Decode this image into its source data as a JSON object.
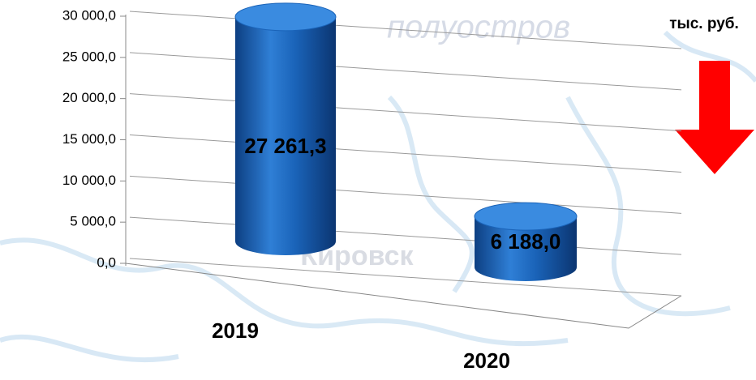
{
  "chart_data": {
    "type": "bar",
    "unit": "тыс. руб.",
    "background_texts": [
      "полуостров",
      "Кировск"
    ],
    "categories": [
      "2019",
      "2020"
    ],
    "values": [
      27261.3,
      6188.0
    ],
    "value_labels": [
      "27 261,3",
      "6 188,0"
    ],
    "color": "#1a63b8",
    "ylim": [
      0,
      30000
    ],
    "yticks": [
      {
        "value": 0,
        "label": "0,0"
      },
      {
        "value": 5000,
        "label": "5 000,0"
      },
      {
        "value": 10000,
        "label": "10 000,0"
      },
      {
        "value": 15000,
        "label": "15 000,0"
      },
      {
        "value": 20000,
        "label": "20 000,0"
      },
      {
        "value": 25000,
        "label": "25 000,0"
      },
      {
        "value": 30000,
        "label": "30 000,0"
      }
    ],
    "grid": true
  }
}
